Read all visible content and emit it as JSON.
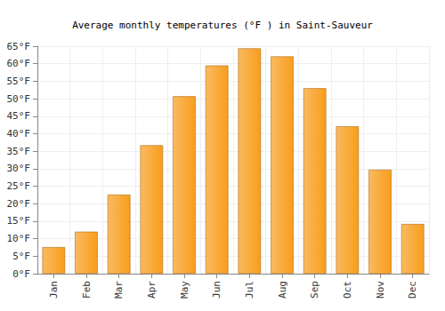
{
  "chart_data": {
    "type": "bar",
    "title": "Average monthly temperatures (°F ) in Saint-Sauveur",
    "categories": [
      "Jan",
      "Feb",
      "Mar",
      "Apr",
      "May",
      "Jun",
      "Jul",
      "Aug",
      "Sep",
      "Oct",
      "Nov",
      "Dec"
    ],
    "values": [
      7.6,
      12.0,
      22.6,
      36.7,
      50.7,
      59.5,
      64.4,
      62.1,
      53.0,
      42.1,
      29.7,
      14.2
    ],
    "color": "#f89d1c",
    "ylim": [
      0,
      65
    ],
    "yticks": [
      {
        "value": 0,
        "label": "0°F"
      },
      {
        "value": 5,
        "label": "5°F"
      },
      {
        "value": 10,
        "label": "10°F"
      },
      {
        "value": 15,
        "label": "15°F"
      },
      {
        "value": 20,
        "label": "20°F"
      },
      {
        "value": 25,
        "label": "25°F"
      },
      {
        "value": 30,
        "label": "30°F"
      },
      {
        "value": 35,
        "label": "35°F"
      },
      {
        "value": 40,
        "label": "40°F"
      },
      {
        "value": 45,
        "label": "45°F"
      },
      {
        "value": 50,
        "label": "50°F"
      },
      {
        "value": 55,
        "label": "55°F"
      },
      {
        "value": 60,
        "label": "60°F"
      },
      {
        "value": 65,
        "label": "65°F"
      }
    ],
    "grid": true
  }
}
